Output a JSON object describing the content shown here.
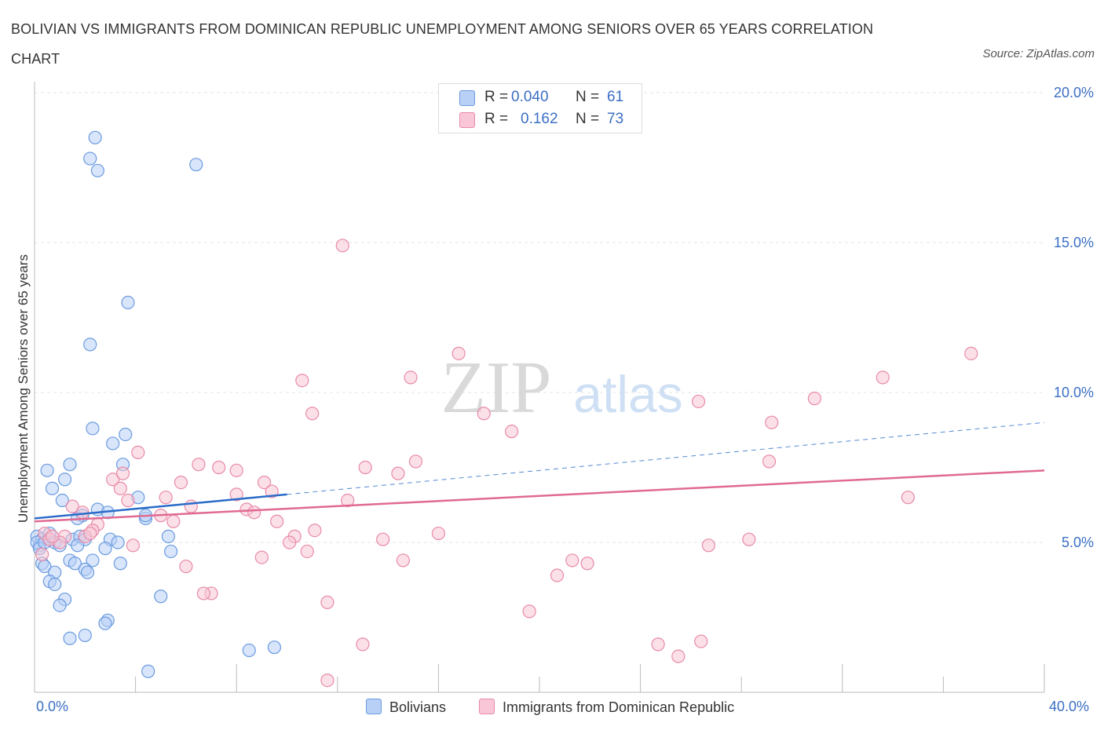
{
  "title": "BOLIVIAN VS IMMIGRANTS FROM DOMINICAN REPUBLIC UNEMPLOYMENT AMONG SENIORS OVER 65 YEARS CORRELATION CHART",
  "source": "Source: ZipAtlas.com",
  "watermark": {
    "zip": "ZIP",
    "atlas": "atlas"
  },
  "legend": {
    "rows": [
      {
        "r_label": "R =",
        "r_value": "0.040",
        "n_label": "N =",
        "n_value": "61",
        "color": "#b8d0f5",
        "border": "#6a9be0"
      },
      {
        "r_label": "R =",
        "r_value": "0.162",
        "n_label": "N =",
        "n_value": "73",
        "color": "#f8c6d6",
        "border": "#e88aa8"
      }
    ]
  },
  "bottom_legend": [
    {
      "label": "Bolivians",
      "color": "#b8d0f5",
      "border": "#6a9be0"
    },
    {
      "label": "Immigrants from Dominican Republic",
      "color": "#f8c6d6",
      "border": "#e88aa8"
    }
  ],
  "chart_data": {
    "type": "scatter",
    "xlabel": "",
    "ylabel": "Unemployment Among Seniors over 65 years",
    "xlim": [
      0,
      40
    ],
    "ylim": [
      0,
      20
    ],
    "x_tick_labels": {
      "left": "0.0%",
      "right": "40.0%"
    },
    "y_ticks": [
      {
        "value": 5,
        "label": "5.0%"
      },
      {
        "value": 10,
        "label": "10.0%"
      },
      {
        "value": 15,
        "label": "15.0%"
      },
      {
        "value": 20,
        "label": "20.0%"
      }
    ],
    "series": [
      {
        "name": "Bolivians",
        "color": "#6a9be0",
        "fill": "#b8d0f5",
        "trend": {
          "x0": 0,
          "y0": 5.8,
          "x1": 10,
          "y1": 6.6,
          "dash_to": 40,
          "dash_y": 9.0,
          "color": "#2a6bc8"
        },
        "points": [
          [
            2.4,
            18.5
          ],
          [
            2.2,
            17.8
          ],
          [
            2.5,
            17.4
          ],
          [
            6.4,
            17.6
          ],
          [
            3.7,
            13.0
          ],
          [
            2.2,
            11.6
          ],
          [
            2.3,
            8.8
          ],
          [
            3.6,
            8.6
          ],
          [
            3.1,
            8.3
          ],
          [
            1.4,
            7.6
          ],
          [
            3.5,
            7.6
          ],
          [
            0.5,
            7.4
          ],
          [
            1.2,
            7.1
          ],
          [
            0.7,
            6.8
          ],
          [
            1.1,
            6.4
          ],
          [
            4.1,
            6.5
          ],
          [
            2.5,
            6.1
          ],
          [
            2.9,
            6.0
          ],
          [
            1.9,
            5.9
          ],
          [
            1.7,
            5.8
          ],
          [
            4.4,
            5.8
          ],
          [
            0.1,
            5.2
          ],
          [
            0.3,
            5.1
          ],
          [
            0.6,
            5.3
          ],
          [
            1.5,
            5.1
          ],
          [
            1.8,
            5.2
          ],
          [
            2.0,
            5.1
          ],
          [
            0.8,
            5.0
          ],
          [
            3.0,
            5.1
          ],
          [
            3.3,
            5.0
          ],
          [
            0.2,
            4.9
          ],
          [
            1.0,
            4.9
          ],
          [
            1.7,
            4.9
          ],
          [
            2.8,
            4.8
          ],
          [
            5.3,
            5.2
          ],
          [
            5.4,
            4.7
          ],
          [
            0.3,
            4.3
          ],
          [
            0.4,
            4.2
          ],
          [
            1.4,
            4.4
          ],
          [
            1.6,
            4.3
          ],
          [
            2.3,
            4.4
          ],
          [
            3.4,
            4.3
          ],
          [
            2.0,
            4.1
          ],
          [
            2.1,
            4.0
          ],
          [
            0.8,
            4.0
          ],
          [
            0.6,
            3.7
          ],
          [
            0.8,
            3.6
          ],
          [
            1.2,
            3.1
          ],
          [
            5.0,
            3.2
          ],
          [
            1.0,
            2.9
          ],
          [
            2.9,
            2.4
          ],
          [
            2.8,
            2.3
          ],
          [
            2.0,
            1.9
          ],
          [
            1.4,
            1.8
          ],
          [
            8.5,
            1.4
          ],
          [
            9.5,
            1.5
          ],
          [
            4.5,
            0.7
          ],
          [
            0.1,
            5.0
          ],
          [
            0.2,
            4.8
          ],
          [
            0.4,
            5.0
          ],
          [
            4.4,
            5.9
          ]
        ]
      },
      {
        "name": "Immigrants from Dominican Republic",
        "color": "#e88aa8",
        "fill": "#f8c6d6",
        "trend": {
          "x0": 0,
          "y0": 5.7,
          "x1": 40,
          "y1": 7.4,
          "color": "#e06a92"
        },
        "points": [
          [
            12.2,
            14.9
          ],
          [
            16.8,
            11.3
          ],
          [
            37.1,
            11.3
          ],
          [
            10.6,
            10.4
          ],
          [
            14.9,
            10.5
          ],
          [
            33.6,
            10.5
          ],
          [
            30.9,
            9.8
          ],
          [
            26.3,
            9.7
          ],
          [
            11.0,
            9.3
          ],
          [
            17.8,
            9.3
          ],
          [
            29.2,
            9.0
          ],
          [
            18.9,
            8.7
          ],
          [
            4.1,
            8.0
          ],
          [
            6.5,
            7.6
          ],
          [
            7.3,
            7.5
          ],
          [
            13.1,
            7.5
          ],
          [
            15.1,
            7.7
          ],
          [
            29.1,
            7.7
          ],
          [
            8.0,
            7.4
          ],
          [
            14.4,
            7.3
          ],
          [
            3.1,
            7.1
          ],
          [
            3.5,
            7.3
          ],
          [
            5.8,
            7.0
          ],
          [
            9.1,
            7.0
          ],
          [
            3.4,
            6.8
          ],
          [
            9.4,
            6.7
          ],
          [
            8.0,
            6.6
          ],
          [
            5.2,
            6.5
          ],
          [
            12.4,
            6.4
          ],
          [
            34.6,
            6.5
          ],
          [
            3.7,
            6.4
          ],
          [
            6.2,
            6.2
          ],
          [
            1.5,
            6.2
          ],
          [
            8.4,
            6.1
          ],
          [
            8.7,
            6.0
          ],
          [
            1.9,
            6.0
          ],
          [
            5.0,
            5.9
          ],
          [
            2.5,
            5.6
          ],
          [
            9.6,
            5.7
          ],
          [
            2.3,
            5.4
          ],
          [
            5.5,
            5.7
          ],
          [
            11.1,
            5.4
          ],
          [
            16.0,
            5.3
          ],
          [
            0.4,
            5.3
          ],
          [
            1.2,
            5.2
          ],
          [
            2.0,
            5.2
          ],
          [
            10.3,
            5.2
          ],
          [
            13.8,
            5.1
          ],
          [
            28.3,
            5.1
          ],
          [
            0.6,
            5.1
          ],
          [
            10.1,
            5.0
          ],
          [
            3.9,
            4.9
          ],
          [
            26.7,
            4.9
          ],
          [
            10.8,
            4.7
          ],
          [
            0.3,
            4.6
          ],
          [
            9.0,
            4.5
          ],
          [
            14.6,
            4.4
          ],
          [
            21.3,
            4.4
          ],
          [
            21.9,
            4.3
          ],
          [
            6.0,
            4.2
          ],
          [
            20.7,
            3.9
          ],
          [
            7.0,
            3.3
          ],
          [
            6.7,
            3.3
          ],
          [
            11.6,
            3.0
          ],
          [
            19.6,
            2.7
          ],
          [
            26.4,
            1.7
          ],
          [
            13.0,
            1.6
          ],
          [
            24.7,
            1.6
          ],
          [
            25.5,
            1.2
          ],
          [
            11.6,
            0.4
          ],
          [
            1.0,
            5.0
          ],
          [
            0.7,
            5.2
          ],
          [
            2.2,
            5.3
          ]
        ]
      }
    ]
  }
}
